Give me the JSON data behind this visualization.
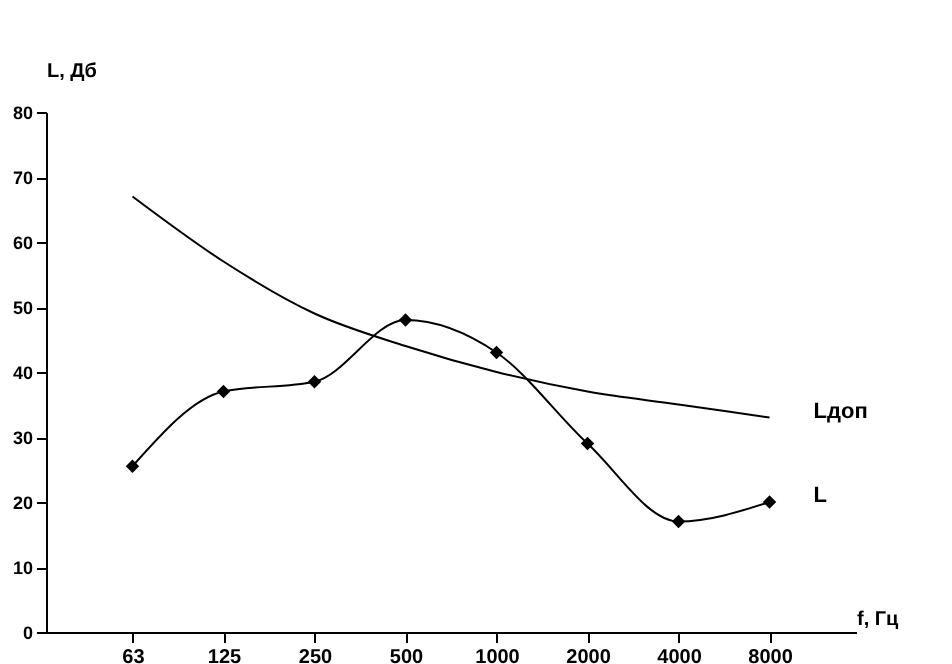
{
  "chart_data": {
    "type": "line",
    "xlabel": "f, Гц",
    "ylabel": "L, Дб",
    "categories": [
      "63",
      "125",
      "250",
      "500",
      "1000",
      "2000",
      "4000",
      "8000"
    ],
    "series": [
      {
        "name": "Lдоп",
        "color": "#000000",
        "marker": "none",
        "values": [
          67,
          57,
          49,
          44,
          40,
          37,
          35,
          33
        ]
      },
      {
        "name": "L",
        "color": "#000000",
        "marker": "diamond",
        "values": [
          25.5,
          37,
          38.5,
          48,
          43,
          29,
          17,
          20
        ]
      }
    ],
    "ylim": [
      0,
      80
    ],
    "yticks": [
      0,
      10,
      20,
      30,
      40,
      50,
      60,
      70,
      80
    ],
    "grid": false,
    "line_style": "solid"
  }
}
